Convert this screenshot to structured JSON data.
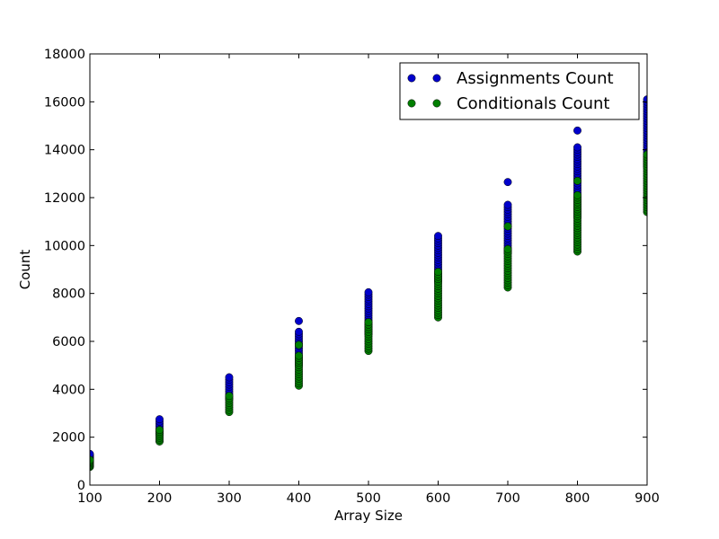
{
  "chart_data": {
    "type": "scatter",
    "title": "",
    "xlabel": "Array Size",
    "ylabel": "Count",
    "xlim": [
      100,
      900
    ],
    "ylim": [
      0,
      18000
    ],
    "xticks": [
      100,
      200,
      300,
      400,
      500,
      600,
      700,
      800,
      900
    ],
    "yticks": [
      0,
      2000,
      4000,
      6000,
      8000,
      10000,
      12000,
      14000,
      16000,
      18000
    ],
    "grid": false,
    "legend_position": "top-right",
    "series": [
      {
        "name": "Assignments Count",
        "color": "#0000cc",
        "points": [
          {
            "x": 100,
            "min": 1020,
            "max": 1300,
            "outliers": []
          },
          {
            "x": 200,
            "min": 2150,
            "max": 2750,
            "outliers": []
          },
          {
            "x": 300,
            "min": 3600,
            "max": 4500,
            "outliers": []
          },
          {
            "x": 400,
            "min": 5000,
            "max": 6400,
            "outliers": [
              6850
            ]
          },
          {
            "x": 500,
            "min": 6300,
            "max": 8050,
            "outliers": []
          },
          {
            "x": 600,
            "min": 8500,
            "max": 10400,
            "outliers": []
          },
          {
            "x": 700,
            "min": 9700,
            "max": 11700,
            "outliers": [
              12650
            ]
          },
          {
            "x": 800,
            "min": 11200,
            "max": 14100,
            "outliers": [
              14800
            ]
          },
          {
            "x": 900,
            "min": 13300,
            "max": 16100,
            "outliers": []
          }
        ]
      },
      {
        "name": "Conditionals Count",
        "color": "#007f00",
        "points": [
          {
            "x": 100,
            "min": 760,
            "max": 1050,
            "outliers": []
          },
          {
            "x": 200,
            "min": 1820,
            "max": 2300,
            "outliers": []
          },
          {
            "x": 300,
            "min": 3050,
            "max": 3720,
            "outliers": []
          },
          {
            "x": 400,
            "min": 4150,
            "max": 5400,
            "outliers": [
              5850
            ]
          },
          {
            "x": 500,
            "min": 5600,
            "max": 6800,
            "outliers": []
          },
          {
            "x": 600,
            "min": 7000,
            "max": 8900,
            "outliers": []
          },
          {
            "x": 700,
            "min": 8250,
            "max": 9850,
            "outliers": [
              10800
            ]
          },
          {
            "x": 800,
            "min": 9750,
            "max": 12100,
            "outliers": [
              12700
            ]
          },
          {
            "x": 900,
            "min": 11400,
            "max": 13800,
            "outliers": []
          }
        ]
      }
    ]
  }
}
